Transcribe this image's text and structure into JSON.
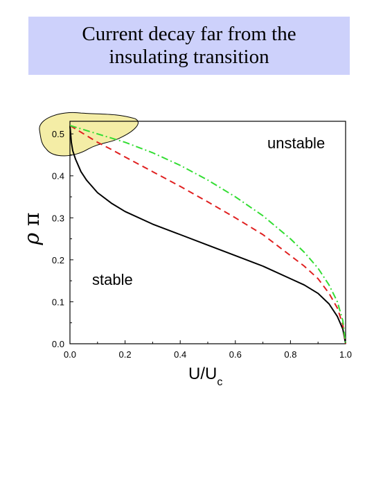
{
  "title": {
    "line1": "Current decay far from the",
    "line2": "insulating transition"
  },
  "colors": {
    "title_bg": "#cdd1fb",
    "highlight": "#f4eda6",
    "solid": "#000000",
    "dashed": "#e02020",
    "dashdot": "#33dd33"
  },
  "chart_data": {
    "type": "line",
    "xlabel": "U/U",
    "xlabel_sub": "c",
    "ylabel_rho": "ρ",
    "ylabel_pi": "π",
    "xlim": [
      0.0,
      1.0
    ],
    "ylim": [
      0.0,
      0.53
    ],
    "x_ticks": [
      "0.0",
      "0.2",
      "0.4",
      "0.6",
      "0.8",
      "1.0"
    ],
    "y_ticks": [
      "0.0",
      "0.1",
      "0.2",
      "0.3",
      "0.4",
      "0.5"
    ],
    "grid": false,
    "annotations": {
      "unstable": "unstable",
      "stable": "stable"
    },
    "series": [
      {
        "style": "solid",
        "x": [
          0.0,
          0.005,
          0.01,
          0.02,
          0.04,
          0.06,
          0.08,
          0.1,
          0.15,
          0.2,
          0.3,
          0.4,
          0.5,
          0.6,
          0.7,
          0.8,
          0.85,
          0.9,
          0.94,
          0.97,
          0.99,
          1.0
        ],
        "y": [
          0.52,
          0.48,
          0.46,
          0.44,
          0.41,
          0.39,
          0.375,
          0.36,
          0.335,
          0.315,
          0.285,
          0.26,
          0.235,
          0.21,
          0.185,
          0.155,
          0.14,
          0.12,
          0.095,
          0.065,
          0.035,
          0.0
        ]
      },
      {
        "style": "dashed",
        "x": [
          0.0,
          0.05,
          0.1,
          0.15,
          0.2,
          0.3,
          0.4,
          0.5,
          0.6,
          0.7,
          0.8,
          0.85,
          0.9,
          0.94,
          0.97,
          0.99,
          1.0
        ],
        "y": [
          0.52,
          0.5,
          0.48,
          0.463,
          0.445,
          0.41,
          0.375,
          0.338,
          0.3,
          0.26,
          0.21,
          0.185,
          0.155,
          0.12,
          0.085,
          0.045,
          0.0
        ]
      },
      {
        "style": "dashdot",
        "x": [
          0.0,
          0.05,
          0.1,
          0.15,
          0.2,
          0.3,
          0.4,
          0.5,
          0.6,
          0.7,
          0.8,
          0.85,
          0.9,
          0.94,
          0.97,
          0.99,
          1.0
        ],
        "y": [
          0.52,
          0.51,
          0.5,
          0.49,
          0.48,
          0.455,
          0.425,
          0.39,
          0.35,
          0.305,
          0.25,
          0.218,
          0.18,
          0.14,
          0.1,
          0.055,
          0.0
        ]
      }
    ]
  }
}
